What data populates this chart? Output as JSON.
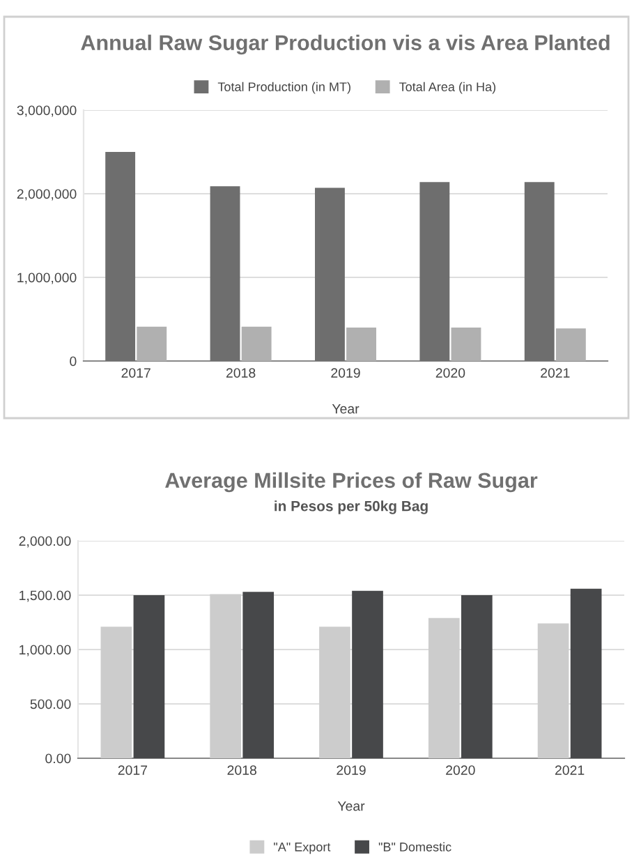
{
  "chart_data": [
    {
      "type": "bar",
      "title": "Annual Raw Sugar Production vis a vis Area Planted",
      "xlabel": "Year",
      "categories": [
        "2017",
        "2018",
        "2019",
        "2020",
        "2021"
      ],
      "series": [
        {
          "name": "Total Production (in MT)",
          "color": "#6e6e6e",
          "values": [
            2500000,
            2090000,
            2070000,
            2140000,
            2140000
          ]
        },
        {
          "name": "Total Area (in Ha)",
          "color": "#b0b0b0",
          "values": [
            410000,
            410000,
            400000,
            400000,
            390000
          ]
        }
      ],
      "ylim": [
        0,
        3000000
      ],
      "yticks": [
        0,
        {
          "value": 1000000,
          "label": "1,000,000"
        },
        {
          "value": 2000000,
          "label": "2,000,000"
        },
        {
          "value": 3000000,
          "label": "3,000,000"
        }
      ],
      "grid": "y",
      "legend": "top"
    },
    {
      "type": "bar",
      "title": "Average Millsite Prices of Raw Sugar",
      "subtitle": "in Pesos per 50kg Bag",
      "xlabel": "Year",
      "categories": [
        "2017",
        "2018",
        "2019",
        "2020",
        "2021"
      ],
      "series": [
        {
          "name": "\"A\" Export",
          "color": "#cccccc",
          "values": [
            1210,
            1510,
            1210,
            1290,
            1240
          ]
        },
        {
          "name": "\"B\" Domestic",
          "color": "#47484a",
          "values": [
            1500,
            1530,
            1540,
            1500,
            1560
          ]
        }
      ],
      "ylim": [
        0,
        2000
      ],
      "yticks": [
        {
          "value": 0,
          "label": "0.00"
        },
        {
          "value": 500,
          "label": "500.00"
        },
        {
          "value": 1000,
          "label": "1,000.00"
        },
        {
          "value": 1500,
          "label": "1,500.00"
        },
        {
          "value": 2000,
          "label": "2,000.00"
        }
      ],
      "grid": "y",
      "legend": "bottom"
    }
  ]
}
